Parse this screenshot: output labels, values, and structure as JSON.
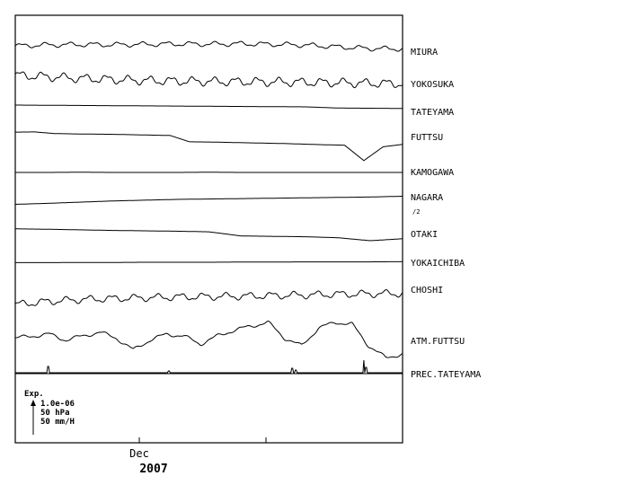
{
  "chart_data": {
    "type": "line",
    "title": "",
    "xlabel": "Dec",
    "year_label": "2007",
    "x_ticks": [
      "Dec"
    ],
    "scale_legend": {
      "title": "Exp.",
      "lines": [
        "1.0e-06",
        "50 hPa",
        "50 mm/H"
      ]
    },
    "series": [
      {
        "name": "MIURA",
        "values": [
          49.5,
          50.0,
          50.2,
          50.1,
          50.3,
          50.5,
          50.4,
          50.6,
          50.3,
          49.9,
          49.0,
          48.2,
          48.0
        ],
        "ripple": 1.0,
        "wobble": 16
      },
      {
        "name": "YOKOSUKA",
        "values": [
          50.6,
          49.8,
          49.0,
          48.4,
          47.9,
          47.6,
          47.4,
          47.3,
          47.2,
          47.0,
          46.8,
          46.5,
          46.3
        ],
        "ripple": 1.8,
        "wobble": 18
      },
      {
        "name": "TATEYAMA",
        "values": [
          50.0,
          49.9,
          49.8,
          49.7,
          49.6,
          49.5,
          49.4,
          49.3,
          49.2,
          49.1,
          48.5,
          48.4,
          48.3
        ],
        "ripple": 0.15,
        "wobble": 0
      },
      {
        "name": "FUTTSU",
        "values": [
          50.4,
          50.5,
          49.7,
          49.5,
          49.4,
          49.3,
          49.1,
          48.9,
          48.7,
          45.5,
          45.4,
          45.2,
          45.0,
          44.8,
          44.6,
          44.3,
          44.0,
          43.8,
          36.0,
          43.0,
          44.2
        ],
        "ripple": 0.2,
        "wobble": 0
      },
      {
        "name": "KAMOGAWA",
        "values": [
          50.0,
          50.0,
          50.1,
          50.0,
          50.0,
          50.0,
          50.1,
          50.0,
          50.0,
          50.0,
          50.0,
          50.0,
          50.0
        ],
        "ripple": 0.2,
        "wobble": 0
      },
      {
        "name": "NAGARA",
        "sub_label": "/2",
        "values": [
          47.5,
          48.0,
          48.6,
          49.2,
          49.6,
          50.0,
          50.2,
          50.4,
          50.6,
          50.8,
          51.0,
          51.2,
          51.6
        ],
        "ripple": 0.15,
        "wobble": 0
      },
      {
        "name": "OTAKI",
        "values": [
          51.0,
          50.8,
          50.5,
          50.2,
          50.0,
          49.8,
          49.5,
          47.4,
          47.2,
          47.0,
          46.5,
          45.0,
          46.0
        ],
        "ripple": 0.2,
        "wobble": 0
      },
      {
        "name": "YOKAICHIBA",
        "values": [
          49.8,
          49.8,
          49.9,
          49.9,
          50.0,
          50.0,
          50.0,
          50.1,
          50.1,
          50.2,
          50.2,
          50.2,
          50.3
        ],
        "ripple": 0.1,
        "wobble": 0
      },
      {
        "name": "CHOSHI",
        "values": [
          45.0,
          46.5,
          47.5,
          48.0,
          48.4,
          48.8,
          49.0,
          49.2,
          49.5,
          49.8,
          50.2,
          50.4,
          50.6
        ],
        "ripple": 1.5,
        "wobble": 17
      },
      {
        "name": "ATM.FUTTSU",
        "values": [
          48,
          49,
          50,
          47,
          49,
          51,
          48,
          42,
          47,
          50,
          49,
          45,
          49,
          52,
          54,
          56,
          48,
          44,
          53,
          56,
          55,
          44,
          38,
          40
        ],
        "ripple": 0.8,
        "wobble": 14
      },
      {
        "name": "PREC.TATEYAMA",
        "values": [
          0,
          0.5,
          0,
          0,
          0,
          0,
          0,
          0,
          0.5,
          0,
          0,
          0,
          0,
          0,
          0,
          0,
          0,
          0,
          0,
          0,
          0,
          0,
          0,
          0
        ],
        "ripple": 0,
        "wobble": 0,
        "spikes": [
          [
            0.085,
            7
          ],
          [
            0.397,
            2
          ],
          [
            0.715,
            5
          ],
          [
            0.725,
            3
          ],
          [
            0.9,
            14
          ],
          [
            0.905,
            6
          ]
        ]
      }
    ]
  }
}
